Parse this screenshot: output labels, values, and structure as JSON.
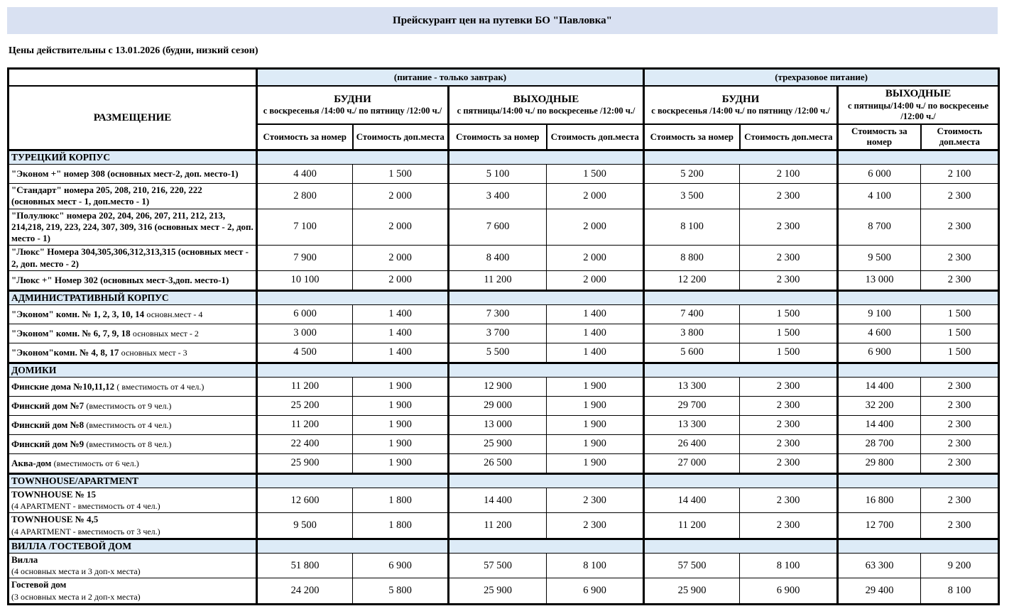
{
  "page": {
    "title": "Прейскурант цен на путевки  БО \"Павловка\"",
    "subtitle": "Цены действительны с 13.01.2026 (будни, низкий сезон)"
  },
  "colors": {
    "title_bg": "#d9e1f2",
    "section_bg": "#ddebf7",
    "border": "#000000"
  },
  "table": {
    "placement_header": "РАЗМЕЩЕНИЕ",
    "meal_groups": [
      {
        "label": "(питание - только завтрак)"
      },
      {
        "label": "(трехразовое питание)"
      }
    ],
    "day_groups": [
      {
        "title": "БУДНИ",
        "subtitle": "с воскресенья /14:00 ч./ по пятницу /12:00 ч./"
      },
      {
        "title": "ВЫХОДНЫЕ",
        "subtitle": "с пятницы/14:00 ч./ по воскресенье /12:00 ч./"
      },
      {
        "title": "БУДНИ",
        "subtitle": "с воскресенья /14:00 ч./ по пятницу /12:00 ч./"
      },
      {
        "title": "ВЫХОДНЫЕ",
        "subtitle": "с пятницы/14:00 ч./  по воскресенье /12:00 ч./"
      }
    ],
    "price_headers": {
      "room": "Стоимость за номер",
      "extra": "Стоимость доп.места"
    },
    "sections": [
      {
        "title": "ТУРЕЦКИЙ КОРПУС",
        "rows": [
          {
            "main": "\"Эконом +\" номер 308  (основных мест-2, доп. место-1)",
            "values": [
              "4 400",
              "1 500",
              "5 100",
              "1 500",
              "5 200",
              "2 100",
              "6 000",
              "2 100"
            ]
          },
          {
            "main": "\"Стандарт\" номера 205, 208, 210, 216, 220, 222\n(основных мест - 1, доп.место - 1)",
            "values": [
              "2 800",
              "2 000",
              "3 400",
              "2 000",
              "3 500",
              "2 300",
              "4 100",
              "2 300"
            ]
          },
          {
            "main": "\"Полулюкс\" номера 202, 204, 206, 207, 211, 212, 213, 214,218, 219, 223, 224, 307, 309, 316   (основных мест - 2, доп. место - 1)",
            "values": [
              "7 100",
              "2 000",
              "7 600",
              "2 000",
              "8 100",
              "2 300",
              "8 700",
              "2 300"
            ]
          },
          {
            "main": "\"Люкс\" Номера 304,305,306,312,313,315 (основных мест - 2, доп. место - 2)",
            "values": [
              "7 900",
              "2 000",
              "8 400",
              "2 000",
              "8 800",
              "2 300",
              "9 500",
              "2 300"
            ]
          },
          {
            "main": "\"Люкс +\" Номер 302 (основных мест-3,доп. место-1)",
            "values": [
              "10 100",
              "2 000",
              "11 200",
              "2 000",
              "12 200",
              "2 300",
              "13 000",
              "2 300"
            ]
          }
        ]
      },
      {
        "title": "АДМИНИСТРАТИВНЫЙ КОРПУС",
        "rows": [
          {
            "main": "\"Эконом\" комн. № 1, 2, 3, 10, 14",
            "sub": "основн.мест - 4",
            "sub_newline": false,
            "values": [
              "6 000",
              "1 400",
              "7 300",
              "1 400",
              "7 400",
              "1 500",
              "9 100",
              "1 500"
            ]
          },
          {
            "main": "\"Эконом\" комн. № 6, 7, 9, 18",
            "sub": "основных мест - 2",
            "sub_newline": false,
            "values": [
              "3 000",
              "1 400",
              "3 700",
              "1 400",
              "3 800",
              "1 500",
              "4 600",
              "1 500"
            ]
          },
          {
            "main": "\"Эконом\"комн. № 4, 8, 17",
            "sub": "основных мест - 3",
            "sub_newline": false,
            "values": [
              "4 500",
              "1 400",
              "5 500",
              "1 400",
              "5 600",
              "1 500",
              "6 900",
              "1 500"
            ]
          }
        ]
      },
      {
        "title": "ДОМИКИ",
        "rows": [
          {
            "main": "Финские дома №10,11,12",
            "sub": "( вместимость от 4 чел.)",
            "sub_newline": false,
            "values": [
              "11 200",
              "1 900",
              "12 900",
              "1 900",
              "13 300",
              "2 300",
              "14 400",
              "2 300"
            ]
          },
          {
            "main": "Финский дом №7",
            "sub": "(вместимость от 9 чел.)",
            "sub_newline": false,
            "values": [
              "25 200",
              "1 900",
              "29 000",
              "1 900",
              "29 700",
              "2 300",
              "32 200",
              "2 300"
            ]
          },
          {
            "main": "Финский дом №8",
            "sub": "(вместимость от 4 чел.)",
            "sub_newline": false,
            "values": [
              "11 200",
              "1 900",
              "13 000",
              "1 900",
              "13 300",
              "2 300",
              "14 400",
              "2 300"
            ]
          },
          {
            "main": "Финский дом №9",
            "sub": "(вместимость от 8 чел.)",
            "sub_newline": false,
            "values": [
              "22 400",
              "1 900",
              "25 900",
              "1 900",
              "26 400",
              "2 300",
              "28 700",
              "2 300"
            ]
          },
          {
            "main": "Аква-дом",
            "sub": "(вместимость от 6 чел.)",
            "sub_newline": false,
            "values": [
              "25 900",
              "1 900",
              "26 500",
              "1 900",
              "27 000",
              "2 300",
              "29 800",
              "2 300"
            ]
          }
        ]
      },
      {
        "title": "TOWNHOUSE/APARTMENT",
        "rows": [
          {
            "main": "TOWNHOUSE № 15",
            "sub": "(4 APARTMENT - вместимость от 4 чел.)",
            "sub_newline": true,
            "values": [
              "12 600",
              "1 800",
              "14 400",
              "2 300",
              "14 400",
              "2 300",
              "16 800",
              "2 300"
            ]
          },
          {
            "main": "TOWNHOUSE № 4,5",
            "sub": "(4 APARTMENT - вместимость от 3 чел.)",
            "sub_newline": true,
            "values": [
              "9 500",
              "1 800",
              "11 200",
              "2 300",
              "11 200",
              "2 300",
              "12 700",
              "2 300"
            ]
          }
        ]
      },
      {
        "title": "ВИЛЛА /ГОСТЕВОЙ ДОМ",
        "rows": [
          {
            "main": "Вилла",
            "sub": "(4 основных места и 3 доп-х места)",
            "sub_newline": true,
            "values": [
              "51 800",
              "6 900",
              "57 500",
              "8 100",
              "57 500",
              "8 100",
              "63 300",
              "9 200"
            ]
          },
          {
            "main": "Гостевой дом",
            "sub": "(3 основных места  и 2 доп-х места)",
            "sub_newline": true,
            "values": [
              "24 200",
              "5 800",
              "25 900",
              "6 900",
              "25 900",
              "6 900",
              "29 400",
              "8 100"
            ]
          }
        ]
      }
    ]
  }
}
